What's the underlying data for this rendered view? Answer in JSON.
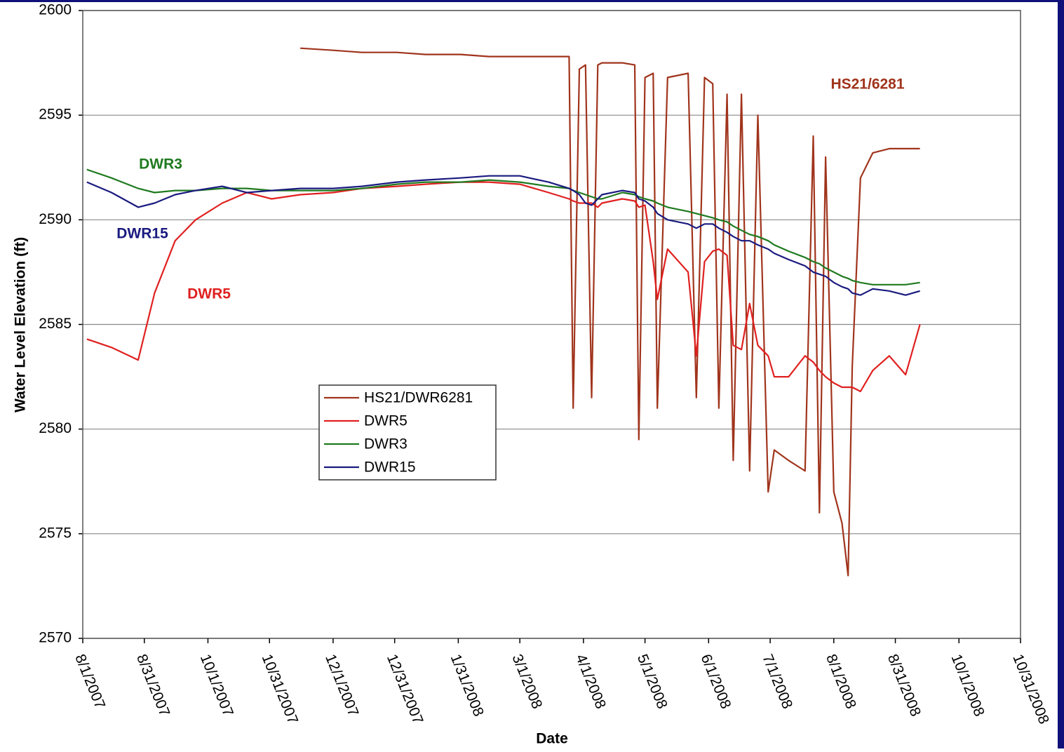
{
  "chart_data": {
    "type": "line",
    "x_label": "Date",
    "y_label": "Water Level Elevation (ft)",
    "x": [
      "8/3/2007",
      "8/15/2007",
      "8/28/2007",
      "9/5/2007",
      "9/15/2007",
      "9/25/2007",
      "10/8/2007",
      "10/20/2007",
      "11/1/2007",
      "11/15/2007",
      "12/1/2007",
      "12/15/2007",
      "1/1/2008",
      "1/15/2008",
      "2/1/2008",
      "2/15/2008",
      "3/1/2008",
      "3/15/2008",
      "3/25/2008",
      "3/27/2008",
      "3/30/2008",
      "4/2/2008",
      "4/5/2008",
      "4/8/2008",
      "4/10/2008",
      "4/20/2008",
      "4/26/2008",
      "4/28/2008",
      "5/1/2008",
      "5/5/2008",
      "5/7/2008",
      "5/12/2008",
      "5/22/2008",
      "5/26/2008",
      "5/30/2008",
      "6/3/2008",
      "6/6/2008",
      "6/10/2008",
      "6/13/2008",
      "6/17/2008",
      "6/21/2008",
      "6/25/2008",
      "6/30/2008",
      "7/3/2008",
      "7/10/2008",
      "7/18/2008",
      "7/22/2008",
      "7/25/2008",
      "7/28/2008",
      "8/1/2008",
      "8/5/2008",
      "8/8/2008",
      "8/10/2008",
      "8/14/2008",
      "8/20/2008",
      "8/28/2008",
      "9/5/2008",
      "9/12/2008"
    ],
    "series": [
      {
        "name": "HS21/DWR6281",
        "color": "#a0341c",
        "values": [
          null,
          null,
          null,
          null,
          null,
          null,
          null,
          null,
          null,
          2598.2,
          2598.1,
          2598.0,
          2598.0,
          2597.9,
          2597.9,
          2597.8,
          2597.8,
          2597.8,
          2597.8,
          2581,
          2597.2,
          2597.4,
          2581.5,
          2597.4,
          2597.5,
          2597.5,
          2597.4,
          2579.5,
          2596.8,
          2597.0,
          2581,
          2596.8,
          2597.0,
          2581.5,
          2596.8,
          2596.5,
          2581,
          2596.0,
          2578.5,
          2596.0,
          2578,
          2595,
          2577,
          2579,
          2578.5,
          2578,
          2594,
          2576,
          2593,
          2577,
          2575.5,
          2573,
          2583,
          2592,
          2593.2,
          2593.4,
          2593.4,
          2593.4
        ]
      },
      {
        "name": "DWR5",
        "color": "#e02020",
        "values": [
          2584.3,
          2583.9,
          2583.3,
          2586.5,
          2589,
          2590,
          2590.8,
          2591.3,
          2591,
          2591.2,
          2591.3,
          2591.5,
          2591.6,
          2591.7,
          2591.8,
          2591.8,
          2591.7,
          2591.3,
          2591.0,
          2590.9,
          2590.8,
          2590.8,
          2590.8,
          2590.6,
          2590.8,
          2591.0,
          2590.9,
          2590.6,
          2590.7,
          2588,
          2586.2,
          2588.6,
          2587.5,
          2583.5,
          2588.0,
          2588.5,
          2588.6,
          2588.3,
          2584,
          2583.8,
          2586,
          2584,
          2583.5,
          2582.5,
          2582.5,
          2583.5,
          2583.2,
          2582.8,
          2582.5,
          2582.2,
          2582.0,
          2582.0,
          2582.0,
          2581.8,
          2582.8,
          2583.5,
          2582.6,
          2585.0
        ]
      },
      {
        "name": "DWR3",
        "color": "#1f7a1f",
        "values": [
          2592.4,
          2592.0,
          2591.5,
          2591.3,
          2591.4,
          2591.4,
          2591.5,
          2591.5,
          2591.4,
          2591.4,
          2591.4,
          2591.5,
          2591.7,
          2591.8,
          2591.8,
          2591.9,
          2591.8,
          2591.6,
          2591.5,
          2591.4,
          2591.3,
          2591.2,
          2591.1,
          2591.0,
          2591.0,
          2591.3,
          2591.2,
          2591.1,
          2591.0,
          2590.9,
          2590.8,
          2590.6,
          2590.4,
          2590.3,
          2590.2,
          2590.1,
          2590.0,
          2589.9,
          2589.7,
          2589.5,
          2589.3,
          2589.2,
          2589.0,
          2588.8,
          2588.5,
          2588.2,
          2588.0,
          2587.9,
          2587.7,
          2587.5,
          2587.3,
          2587.2,
          2587.1,
          2587.0,
          2586.9,
          2586.9,
          2586.9,
          2587.0
        ]
      },
      {
        "name": "DWR15",
        "color": "#1a1a80",
        "values": [
          2591.8,
          2591.3,
          2590.6,
          2590.8,
          2591.2,
          2591.4,
          2591.6,
          2591.3,
          2591.4,
          2591.5,
          2591.5,
          2591.6,
          2591.8,
          2591.9,
          2592.0,
          2592.1,
          2592.1,
          2591.8,
          2591.5,
          2591.4,
          2591.2,
          2590.8,
          2590.7,
          2591.0,
          2591.2,
          2591.4,
          2591.3,
          2591.0,
          2590.9,
          2590.6,
          2590.3,
          2590.0,
          2589.8,
          2589.6,
          2589.8,
          2589.8,
          2589.6,
          2589.4,
          2589.2,
          2589.0,
          2589.0,
          2588.8,
          2588.6,
          2588.4,
          2588.1,
          2587.8,
          2587.5,
          2587.4,
          2587.3,
          2587.0,
          2586.8,
          2586.7,
          2586.5,
          2586.4,
          2586.7,
          2586.6,
          2586.4,
          2586.6
        ]
      }
    ],
    "annotations": [
      {
        "text": "HS21/6281",
        "color": "#a0341c"
      },
      {
        "text": "DWR3",
        "color": "#1f7a1f"
      },
      {
        "text": "DWR15",
        "color": "#1a1a80"
      },
      {
        "text": "DWR5",
        "color": "#e02020"
      }
    ],
    "xlim": [
      "8/1/2007",
      "10/31/2008"
    ],
    "xticks": [
      "8/1/2007",
      "8/31/2007",
      "10/1/2007",
      "10/31/2007",
      "12/1/2007",
      "12/31/2007",
      "1/31/2008",
      "3/1/2008",
      "4/1/2008",
      "5/1/2008",
      "6/1/2008",
      "7/1/2008",
      "8/1/2008",
      "8/31/2008",
      "10/1/2008",
      "10/31/2008"
    ],
    "ylim": [
      2570,
      2600
    ],
    "yticks": [
      2570,
      2575,
      2580,
      2585,
      2590,
      2595,
      2600
    ],
    "grid": true
  }
}
